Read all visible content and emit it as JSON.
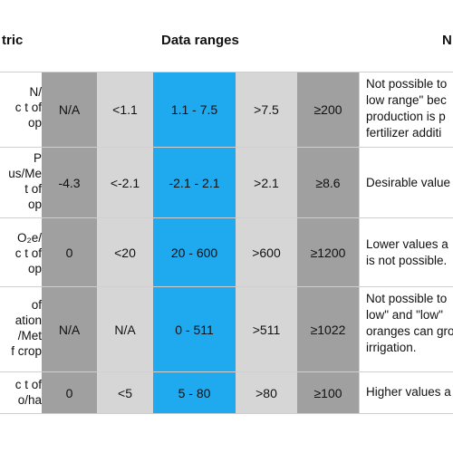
{
  "headers": {
    "metric": "tric",
    "ranges": "Data ranges",
    "notes": "N"
  },
  "colors": {
    "dark_gray": "#a0a0a0",
    "light_gray": "#d6d6d6",
    "blue": "#1fa9ee",
    "border": "#cfcfcf"
  },
  "rows": [
    {
      "metric_lines": [
        "N/",
        "c t of",
        "op"
      ],
      "values": [
        "N/A",
        "<1.1",
        "1.1 - 7.5",
        ">7.5",
        "≥200"
      ],
      "note_lines": [
        "Not possible to",
        "low range\" bec",
        "production is p",
        "fertilizer additi"
      ]
    },
    {
      "metric_lines": [
        "P",
        "us/Me",
        "t of",
        "op"
      ],
      "values": [
        "-4.3",
        "<-2.1",
        "-2.1 - 2.1",
        ">2.1",
        "≥8.6"
      ],
      "note_lines": [
        "Desirable value"
      ]
    },
    {
      "metric_lines": [
        "O₂e/",
        "c t of",
        "op"
      ],
      "values": [
        "0",
        "<20",
        "20 - 600",
        ">600",
        "≥1200"
      ],
      "note_lines": [
        "Lower values a",
        "is not possible."
      ]
    },
    {
      "metric_lines": [
        "of",
        "ation",
        "/Met",
        "f crop"
      ],
      "values": [
        "N/A",
        "N/A",
        "0 - 511",
        ">511",
        "≥1022"
      ],
      "note_lines": [
        "Not possible to",
        "low\" and \"low\"",
        "oranges can gro",
        "irrigation."
      ]
    },
    {
      "metric_lines": [
        "c t of",
        "o/ha"
      ],
      "values": [
        "0",
        "<5",
        "5 - 80",
        ">80",
        "≥100"
      ],
      "note_lines": [
        "Higher values a"
      ]
    }
  ]
}
